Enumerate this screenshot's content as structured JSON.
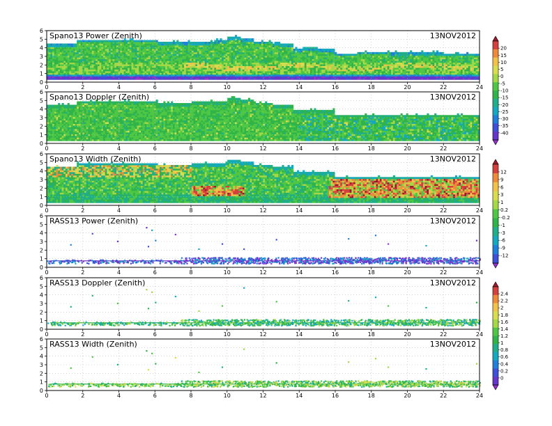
{
  "chart_data": [
    {
      "type": "heatmap",
      "title": "Spano13 Power (Zenith)",
      "date": "13NOV2012",
      "colorbar": "power",
      "field": "power",
      "xlim": [
        0,
        24
      ],
      "ylim": [
        0,
        6
      ],
      "xticks": [
        0,
        2,
        4,
        6,
        8,
        10,
        12,
        14,
        16,
        18,
        20,
        22,
        24
      ],
      "yticks": [
        0,
        1,
        2,
        3,
        4,
        5,
        6
      ],
      "grid": true,
      "top_height_km": [
        [
          0,
          4.4
        ],
        [
          1.6,
          4.4
        ],
        [
          1.8,
          4.9
        ],
        [
          6,
          4.9
        ],
        [
          6.3,
          4.6
        ],
        [
          7.5,
          4.6
        ],
        [
          8.7,
          4.6
        ],
        [
          9.8,
          4.8
        ],
        [
          10.3,
          5.2
        ],
        [
          11.3,
          5.0
        ],
        [
          11.7,
          4.7
        ],
        [
          13.3,
          4.4
        ],
        [
          14,
          3.8
        ],
        [
          14.5,
          4.0
        ],
        [
          15.5,
          3.8
        ],
        [
          16.5,
          3.3
        ],
        [
          18,
          3.5
        ],
        [
          20,
          3.4
        ],
        [
          24,
          3.3
        ]
      ],
      "features": [
        {
          "kind": "low_layer",
          "height_km": 0.5,
          "value": -30
        },
        {
          "kind": "band",
          "height_km": 1.7,
          "x_from": 7.5,
          "x_to": 24,
          "value": 4
        }
      ]
    },
    {
      "type": "heatmap",
      "title": "Spano13 Doppler (Zenith)",
      "date": "13NOV2012",
      "colorbar": "power",
      "field": "doppler",
      "xlim": [
        0,
        24
      ],
      "ylim": [
        0,
        6
      ],
      "xticks": [
        0,
        2,
        4,
        6,
        8,
        10,
        12,
        14,
        16,
        18,
        20,
        22,
        24
      ],
      "yticks": [
        0,
        1,
        2,
        3,
        4,
        5,
        6
      ],
      "grid": true,
      "top_height_km": [
        [
          0,
          4.4
        ],
        [
          1.6,
          4.4
        ],
        [
          1.8,
          4.9
        ],
        [
          6,
          4.9
        ],
        [
          6.3,
          4.6
        ],
        [
          9.8,
          4.8
        ],
        [
          10.3,
          5.2
        ],
        [
          11.3,
          5.0
        ],
        [
          11.7,
          4.7
        ],
        [
          13.3,
          4.4
        ],
        [
          14,
          3.8
        ],
        [
          15.5,
          3.8
        ],
        [
          16.5,
          3.3
        ],
        [
          24,
          3.3
        ]
      ]
    },
    {
      "type": "heatmap",
      "title": "Spano13 Width (Zenith)",
      "date": "13NOV2012",
      "colorbar": "width",
      "field": "width",
      "xlim": [
        0,
        24
      ],
      "ylim": [
        0,
        6
      ],
      "xticks": [
        0,
        2,
        4,
        6,
        8,
        10,
        12,
        14,
        16,
        18,
        20,
        22,
        24
      ],
      "yticks": [
        0,
        1,
        2,
        3,
        4,
        5,
        6
      ],
      "grid": true,
      "top_height_km": [
        [
          0,
          4.4
        ],
        [
          1.6,
          4.4
        ],
        [
          1.8,
          4.9
        ],
        [
          6,
          4.9
        ],
        [
          6.3,
          4.6
        ],
        [
          9.8,
          4.8
        ],
        [
          10.3,
          5.2
        ],
        [
          11.3,
          5.0
        ],
        [
          11.7,
          4.7
        ],
        [
          13.3,
          4.4
        ],
        [
          14,
          3.8
        ],
        [
          15.5,
          3.8
        ],
        [
          16.5,
          3.3
        ],
        [
          24,
          3.3
        ]
      ],
      "features": [
        {
          "kind": "hot_region",
          "x_from": 15.6,
          "x_to": 24,
          "y_from": 0.8,
          "y_to": 3.0,
          "value": 6
        },
        {
          "kind": "hot_region",
          "x_from": 8,
          "x_to": 11,
          "y_from": 0.9,
          "y_to": 2.2,
          "value": 4
        }
      ]
    },
    {
      "type": "scatter",
      "title": "RASS13 Power (Zenith)",
      "date": "13NOV2012",
      "colorbar": "width",
      "field": "rass_power",
      "xlim": [
        0,
        24
      ],
      "ylim": [
        0,
        6
      ],
      "xticks": [
        0,
        2,
        4,
        6,
        8,
        10,
        12,
        14,
        16,
        18,
        20,
        22,
        24
      ],
      "yticks": [
        0,
        1,
        2,
        3,
        4,
        5,
        6
      ],
      "grid": true,
      "layer_km": [
        0.5,
        1.2
      ],
      "scattered_points": [
        [
          1.3,
          2.7
        ],
        [
          2.5,
          4.0
        ],
        [
          3.9,
          3.1
        ],
        [
          5.5,
          4.7
        ],
        [
          5.8,
          4.4
        ],
        [
          5.6,
          2.5
        ],
        [
          6.0,
          3.2
        ],
        [
          7.1,
          3.9
        ],
        [
          8.4,
          2.2
        ],
        [
          9.7,
          2.8
        ],
        [
          10.9,
          2.2
        ],
        [
          12.7,
          3.3
        ],
        [
          16.7,
          3.4
        ],
        [
          18.2,
          3.8
        ],
        [
          18.9,
          2.8
        ],
        [
          21.0,
          2.6
        ],
        [
          23.8,
          3.2
        ]
      ]
    },
    {
      "type": "scatter",
      "title": "RASS13 Doppler (Zenith)",
      "date": "13NOV2012",
      "colorbar": "speed",
      "field": "rass_doppler",
      "xlim": [
        0,
        24
      ],
      "ylim": [
        0,
        6
      ],
      "xticks": [
        0,
        2,
        4,
        6,
        8,
        10,
        12,
        14,
        16,
        18,
        20,
        22,
        24
      ],
      "yticks": [
        0,
        1,
        2,
        3,
        4,
        5,
        6
      ],
      "grid": true,
      "layer_km": [
        0.5,
        1.2
      ],
      "scattered_points": [
        [
          1.3,
          2.7
        ],
        [
          2.5,
          4.0
        ],
        [
          3.9,
          3.1
        ],
        [
          5.5,
          4.7
        ],
        [
          5.8,
          4.4
        ],
        [
          5.6,
          2.5
        ],
        [
          6.0,
          3.2
        ],
        [
          7.1,
          3.9
        ],
        [
          8.4,
          2.2
        ],
        [
          9.7,
          2.8
        ],
        [
          10.9,
          4.9
        ],
        [
          12.7,
          3.3
        ],
        [
          16.7,
          3.4
        ],
        [
          18.2,
          3.8
        ],
        [
          18.9,
          2.8
        ],
        [
          21.0,
          2.6
        ],
        [
          23.8,
          3.2
        ]
      ]
    },
    {
      "type": "scatter",
      "title": "RASS13 Width (Zenith)",
      "date": "13NOV2012",
      "colorbar": "speed",
      "field": "rass_width",
      "xlim": [
        0,
        24
      ],
      "ylim": [
        0,
        6
      ],
      "xticks": [
        0,
        2,
        4,
        6,
        8,
        10,
        12,
        14,
        16,
        18,
        20,
        22,
        24
      ],
      "yticks": [
        0,
        1,
        2,
        3,
        4,
        5,
        6
      ],
      "grid": true,
      "layer_km": [
        0.5,
        1.2
      ],
      "scattered_points": [
        [
          1.3,
          2.7
        ],
        [
          2.5,
          4.0
        ],
        [
          3.9,
          3.1
        ],
        [
          5.5,
          4.7
        ],
        [
          5.8,
          4.4
        ],
        [
          5.6,
          2.5
        ],
        [
          6.0,
          3.2
        ],
        [
          7.1,
          3.9
        ],
        [
          8.4,
          2.2
        ],
        [
          9.7,
          2.8
        ],
        [
          10.9,
          4.9
        ],
        [
          12.7,
          3.3
        ],
        [
          16.7,
          3.4
        ],
        [
          18.2,
          3.8
        ],
        [
          18.9,
          2.8
        ],
        [
          21.0,
          2.6
        ],
        [
          23.8,
          3.2
        ]
      ]
    }
  ],
  "colorbars": [
    {
      "id": "power",
      "labels": [
        "20",
        "15",
        "10",
        "5",
        "0",
        "-5",
        "-10",
        "-15",
        "-20",
        "-25",
        "-30",
        "-35",
        "-40"
      ],
      "colors": [
        "#9a1a2c",
        "#d4403d",
        "#ee8a3a",
        "#f1c14a",
        "#d9dc4e",
        "#a4d847",
        "#4fc744",
        "#30b44a",
        "#1fae89",
        "#14a9c1",
        "#1f7fd9",
        "#3e4fd8",
        "#6636c8",
        "#9333cc"
      ]
    },
    {
      "id": "width",
      "labels": [
        "12",
        "9",
        "6",
        "3",
        "1",
        "0.2",
        "-0.2",
        "-1",
        "-3",
        "-6",
        "-9",
        "-12"
      ],
      "colors": [
        "#9a1a2c",
        "#d4403d",
        "#ee8a3a",
        "#f1c14a",
        "#d9dc4e",
        "#a4d847",
        "#4fc744",
        "#30b44a",
        "#1fae89",
        "#14a9c1",
        "#1f7fd9",
        "#3e4fd8",
        "#9333cc"
      ]
    },
    {
      "id": "speed",
      "labels": [
        "2.4",
        "2.2",
        "2",
        "1.8",
        "1.6",
        "1.4",
        "1.2",
        "1",
        "0.8",
        "0.6",
        "0.4",
        "0.2",
        "0"
      ],
      "colors": [
        "#9a1a2c",
        "#d4403d",
        "#ee8a3a",
        "#f1c14a",
        "#d9dc4e",
        "#a4d847",
        "#4fc744",
        "#30b44a",
        "#1fae89",
        "#14a9c1",
        "#1f7fd9",
        "#3e4fd8",
        "#6636c8",
        "#9333cc"
      ]
    }
  ]
}
